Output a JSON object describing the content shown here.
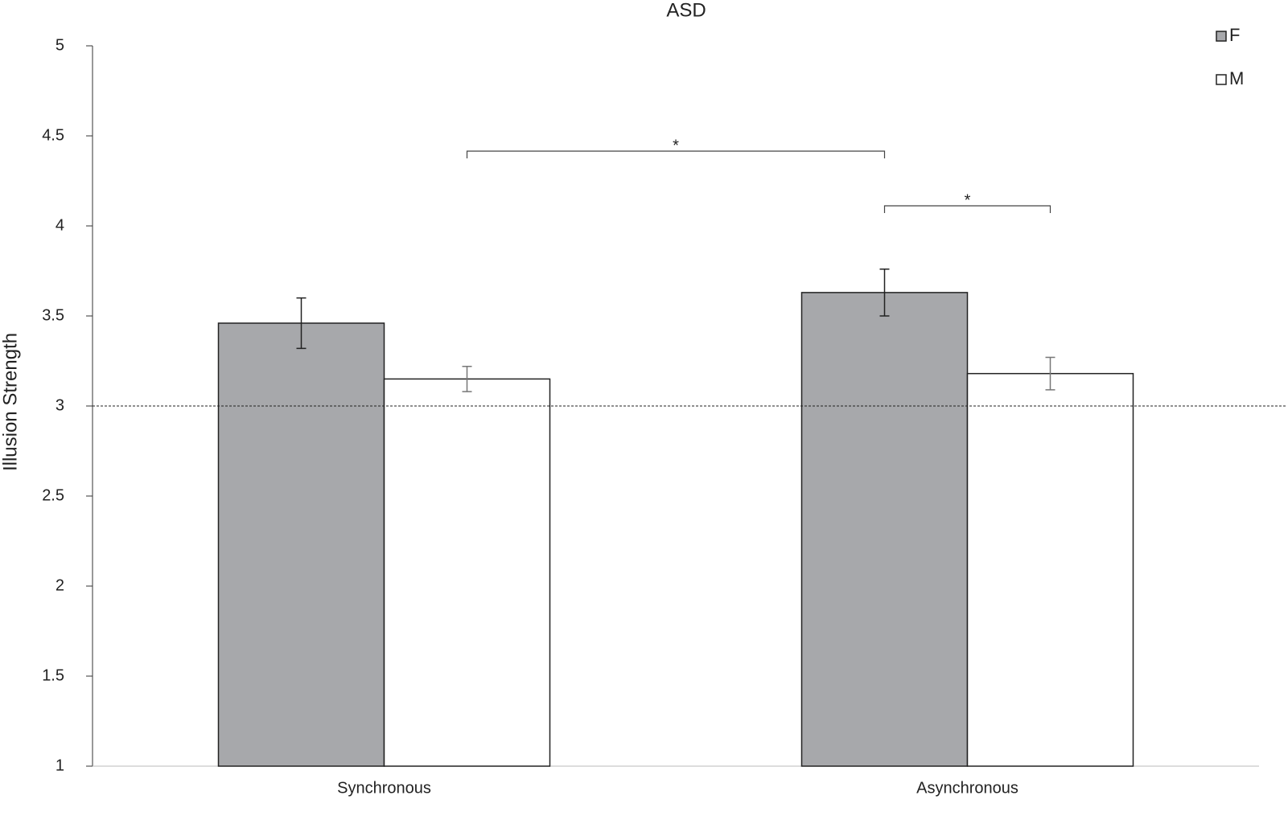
{
  "chart_data": {
    "type": "bar",
    "title": "ASD",
    "y_label": "Illusion Strength",
    "categories": [
      "Synchronous",
      "Asynchronous"
    ],
    "series": [
      {
        "name": "F",
        "color": "#a7a8ab",
        "values": [
          3.46,
          3.63
        ],
        "errors": [
          0.14,
          0.13
        ]
      },
      {
        "name": "M",
        "color": "#ffffff",
        "values": [
          3.15,
          3.18
        ],
        "errors": [
          0.07,
          0.09
        ]
      }
    ],
    "ylim": [
      1,
      5
    ],
    "yticks": [
      1,
      1.5,
      2,
      2.5,
      3,
      3.5,
      4,
      4.5,
      5
    ],
    "reference_line": 3,
    "annotations": [
      {
        "text": "*"
      },
      {
        "text": "*"
      }
    ],
    "legend": "top-right"
  }
}
